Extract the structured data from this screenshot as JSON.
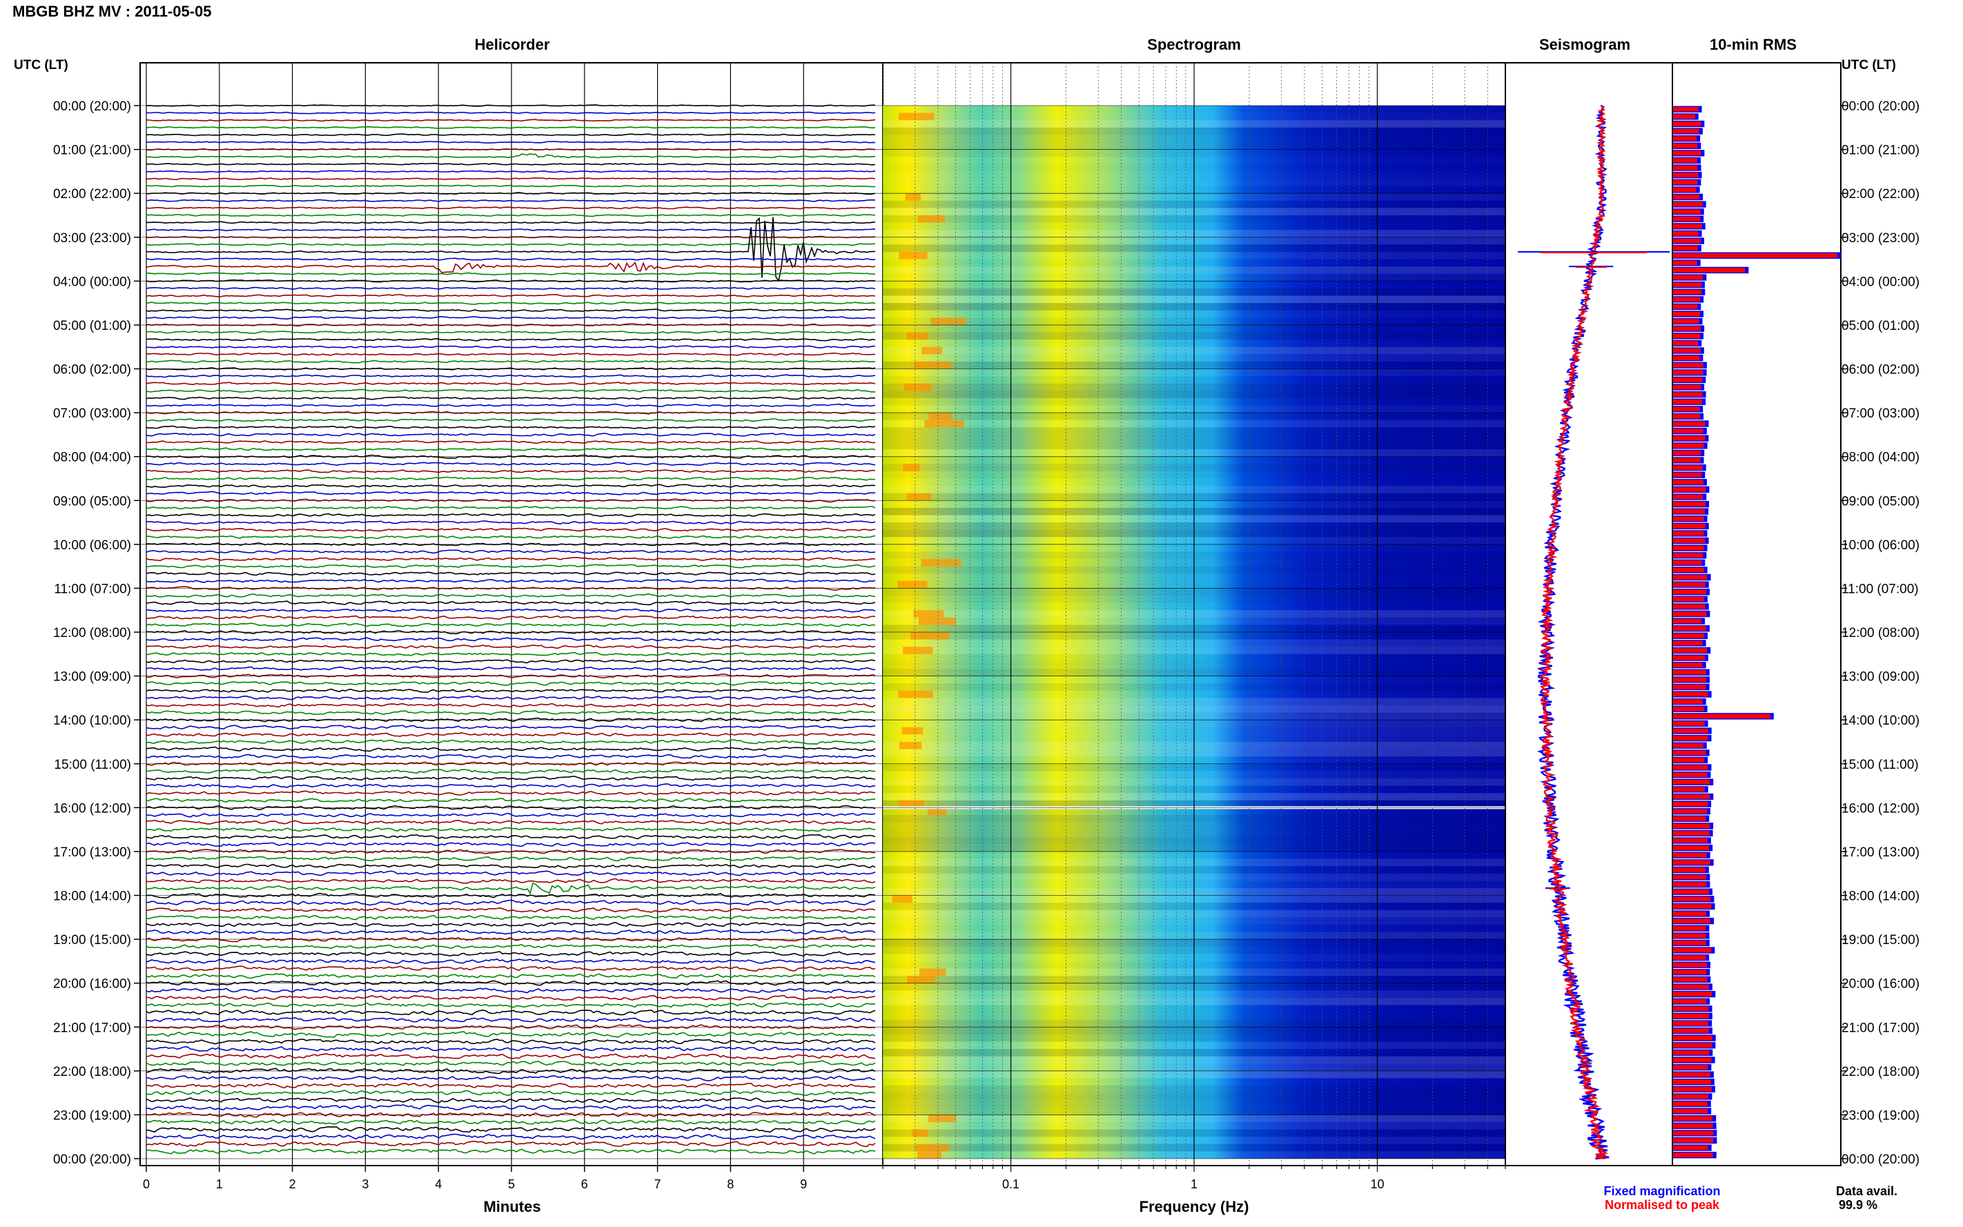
{
  "title": "MBGB BHZ MV : 2011-05-05",
  "time_axis_label": "UTC (LT)",
  "panels": {
    "helicorder": "Helicorder",
    "spectrogram": "Spectrogram",
    "seismogram": "Seismogram",
    "rms": "10-min RMS"
  },
  "x_labels": {
    "helicorder": "Minutes",
    "spectrogram": "Frequency (Hz)"
  },
  "legend": {
    "fixed": "Fixed magnification",
    "fixed_color": "#0000ff",
    "normalised": "Normalised to peak",
    "normalised_color": "#ff0000"
  },
  "data_availability": {
    "label": "Data avail.",
    "value": "99.9 %"
  },
  "chart_data": [
    {
      "type": "line",
      "name": "helicorder",
      "x_ticks": [
        "0",
        "1",
        "2",
        "3",
        "4",
        "5",
        "6",
        "7",
        "8",
        "9"
      ],
      "xlim": [
        0,
        10
      ],
      "line_colors": [
        "#000000",
        "#0000cc",
        "#990000",
        "#008800"
      ],
      "rows_per_hour": 6,
      "events": [
        {
          "time": "01:10",
          "minute": 5.0,
          "amplitude": "small"
        },
        {
          "time": "03:20",
          "minute": 8.3,
          "amplitude": "large"
        },
        {
          "time": "03:40",
          "minute": 4.0,
          "amplitude": "medium"
        },
        {
          "time": "03:40",
          "minute": 6.4,
          "amplitude": "medium"
        },
        {
          "time": "17:50",
          "minute": 5.3,
          "amplitude": "medium"
        }
      ]
    },
    {
      "type": "heatmap",
      "name": "spectrogram",
      "x_scale": "log",
      "xlim": [
        0.02,
        50
      ],
      "x_ticks": [
        "0.1",
        "1",
        "10"
      ],
      "colormap": [
        "#ff8000",
        "#ffff00",
        "#00e0c0",
        "#00a0ff",
        "#0000c0"
      ]
    },
    {
      "type": "line",
      "name": "seismogram"
    },
    {
      "type": "bar",
      "name": "10-min RMS",
      "orientation": "horizontal",
      "spikes": [
        {
          "time": "03:20",
          "relative": 1.0
        },
        {
          "time": "03:40",
          "relative": 0.45
        },
        {
          "time": "13:50",
          "relative": 0.6
        }
      ]
    }
  ],
  "time_ticks": [
    {
      "utc": "00:00",
      "lt": "(20:00)"
    },
    {
      "utc": "01:00",
      "lt": "(21:00)"
    },
    {
      "utc": "02:00",
      "lt": "(22:00)"
    },
    {
      "utc": "03:00",
      "lt": "(23:00)"
    },
    {
      "utc": "04:00",
      "lt": "(00:00)"
    },
    {
      "utc": "05:00",
      "lt": "(01:00)"
    },
    {
      "utc": "06:00",
      "lt": "(02:00)"
    },
    {
      "utc": "07:00",
      "lt": "(03:00)"
    },
    {
      "utc": "08:00",
      "lt": "(04:00)"
    },
    {
      "utc": "09:00",
      "lt": "(05:00)"
    },
    {
      "utc": "10:00",
      "lt": "(06:00)"
    },
    {
      "utc": "11:00",
      "lt": "(07:00)"
    },
    {
      "utc": "12:00",
      "lt": "(08:00)"
    },
    {
      "utc": "13:00",
      "lt": "(09:00)"
    },
    {
      "utc": "14:00",
      "lt": "(10:00)"
    },
    {
      "utc": "15:00",
      "lt": "(11:00)"
    },
    {
      "utc": "16:00",
      "lt": "(12:00)"
    },
    {
      "utc": "17:00",
      "lt": "(13:00)"
    },
    {
      "utc": "18:00",
      "lt": "(14:00)"
    },
    {
      "utc": "19:00",
      "lt": "(15:00)"
    },
    {
      "utc": "20:00",
      "lt": "(16:00)"
    },
    {
      "utc": "21:00",
      "lt": "(17:00)"
    },
    {
      "utc": "22:00",
      "lt": "(18:00)"
    },
    {
      "utc": "23:00",
      "lt": "(19:00)"
    },
    {
      "utc": "00:00",
      "lt": "(20:00)"
    }
  ]
}
